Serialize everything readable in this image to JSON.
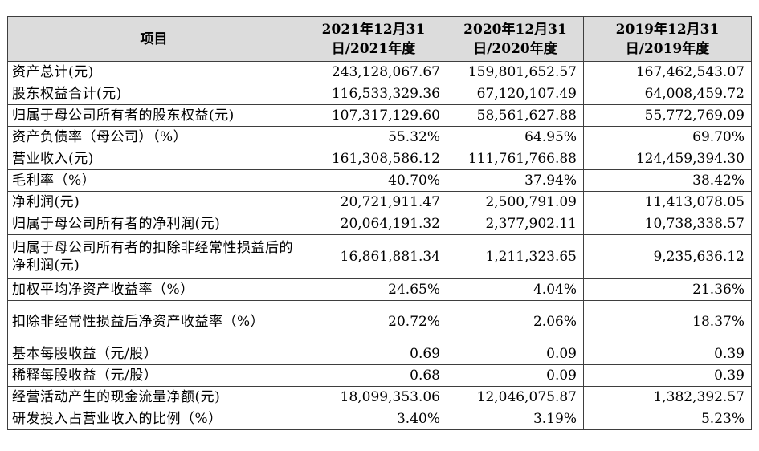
{
  "table": {
    "headers": {
      "item": "项目",
      "y2021": "2021年12月31日/2021年度",
      "y2020": "2020年12月31日/2020年度",
      "y2019": "2019年12月31日/2019年度"
    },
    "rows": [
      {
        "label": "资产总计(元)",
        "v2021": "243,128,067.67",
        "v2020": "159,801,652.57",
        "v2019": "167,462,543.07"
      },
      {
        "label": "股东权益合计(元)",
        "v2021": "116,533,329.36",
        "v2020": "67,120,107.49",
        "v2019": "64,008,459.72"
      },
      {
        "label": "归属于母公司所有者的股东权益(元)",
        "v2021": "107,317,129.60",
        "v2020": "58,561,627.88",
        "v2019": "55,772,769.09"
      },
      {
        "label": "资产负债率（母公司）（%）",
        "v2021": "55.32%",
        "v2020": "64.95%",
        "v2019": "69.70%"
      },
      {
        "label": "营业收入(元)",
        "v2021": "161,308,586.12",
        "v2020": "111,761,766.88",
        "v2019": "124,459,394.30"
      },
      {
        "label": "毛利率（%）",
        "v2021": "40.70%",
        "v2020": "37.94%",
        "v2019": "38.42%"
      },
      {
        "label": "净利润(元)",
        "v2021": "20,721,911.47",
        "v2020": "2,500,791.09",
        "v2019": "11,413,078.05"
      },
      {
        "label": "归属于母公司所有者的净利润(元)",
        "v2021": "20,064,191.32",
        "v2020": "2,377,902.11",
        "v2019": "10,738,338.57"
      },
      {
        "label": "归属于母公司所有者的扣除非经常性损益后的净利润(元)",
        "v2021": "16,861,881.34",
        "v2020": "1,211,323.65",
        "v2019": "9,235,636.12"
      },
      {
        "label": "加权平均净资产收益率（%）",
        "v2021": "24.65%",
        "v2020": "4.04%",
        "v2019": "21.36%"
      },
      {
        "label": "扣除非经常性损益后净资产收益率（%）",
        "v2021": "20.72%",
        "v2020": "2.06%",
        "v2019": "18.37%"
      },
      {
        "label": "基本每股收益（元/股）",
        "v2021": "0.69",
        "v2020": "0.09",
        "v2019": "0.39"
      },
      {
        "label": "稀释每股收益（元/股）",
        "v2021": "0.68",
        "v2020": "0.09",
        "v2019": "0.39"
      },
      {
        "label": "经营活动产生的现金流量净额(元)",
        "v2021": "18,099,353.06",
        "v2020": "12,046,075.87",
        "v2019": "1,382,392.57"
      },
      {
        "label": "研发投入占营业收入的比例（%）",
        "v2021": "3.40%",
        "v2020": "3.19%",
        "v2019": "5.23%"
      }
    ]
  }
}
